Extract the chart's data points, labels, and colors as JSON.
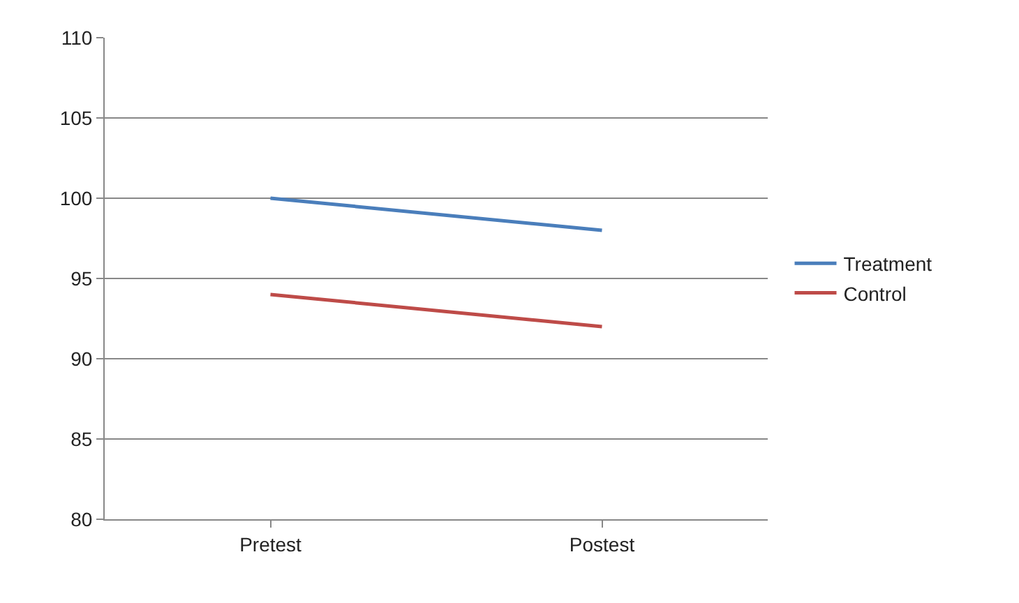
{
  "chart_data": {
    "type": "line",
    "categories": [
      "Pretest",
      "Postest"
    ],
    "series": [
      {
        "name": "Treatment",
        "color": "#4a7ebb",
        "values": [
          100,
          98
        ]
      },
      {
        "name": "Control",
        "color": "#be4b48",
        "values": [
          94,
          92
        ]
      }
    ],
    "ylim": [
      80,
      110
    ],
    "yticks": [
      80,
      85,
      90,
      95,
      100,
      105,
      110
    ],
    "grid": "y",
    "legend": "right",
    "marker": "none",
    "line_style": "solid"
  }
}
